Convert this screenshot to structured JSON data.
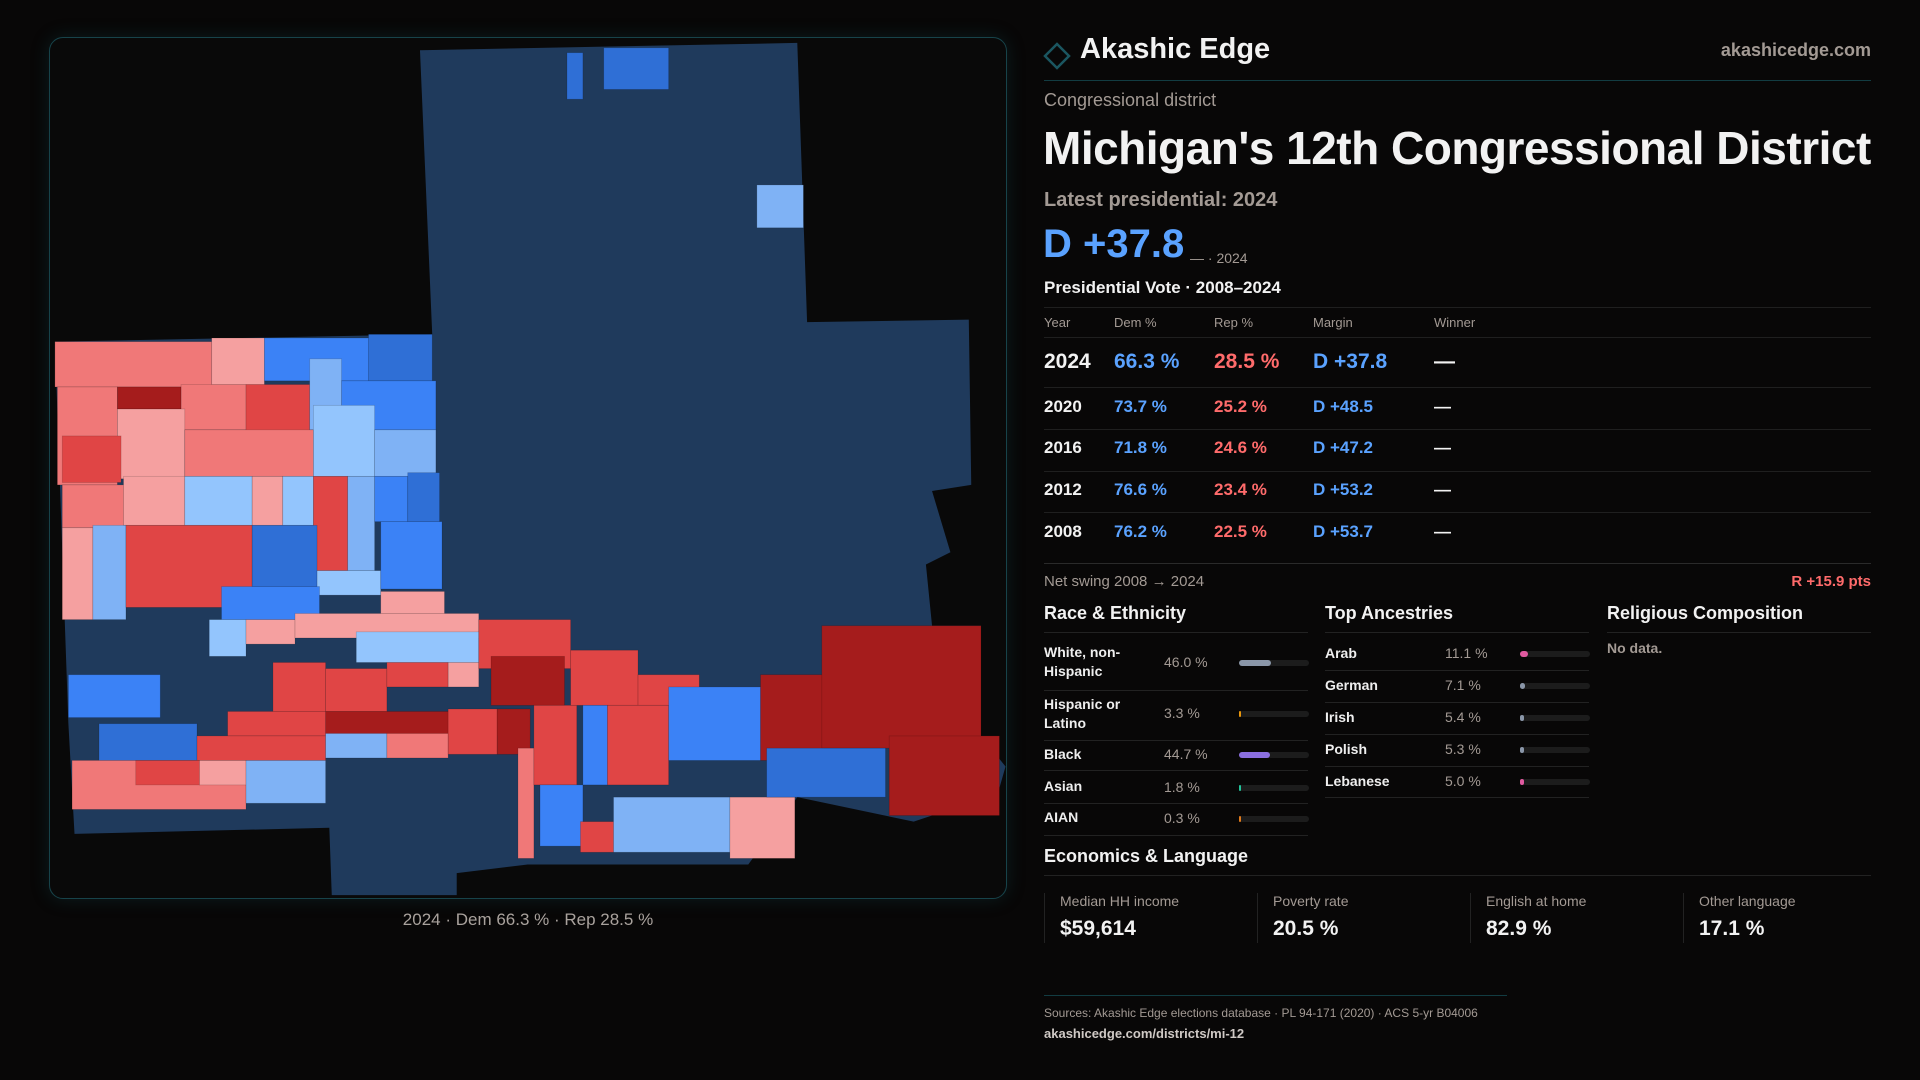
{
  "brand": {
    "name": "Akashic Edge",
    "site": "akashicedge.com",
    "accent": "#17434a"
  },
  "header": {
    "kicker": "Congressional district",
    "title": "Michigan's 12th Congressional District",
    "latest_label": "Latest presidential: 2024",
    "margin": "D +37.8",
    "margin_note": "— · 2024"
  },
  "votes": {
    "title": "Presidential Vote · 2008–2024",
    "columns": [
      "Year",
      "Dem %",
      "Rep %",
      "Margin",
      "Winner"
    ],
    "rows": [
      {
        "year": "2024",
        "dem": "66.3 %",
        "rep": "28.5 %",
        "margin": "D +37.8",
        "winner": "—"
      },
      {
        "year": "2020",
        "dem": "73.7 %",
        "rep": "25.2 %",
        "margin": "D +48.5",
        "winner": "—"
      },
      {
        "year": "2016",
        "dem": "71.8 %",
        "rep": "24.6 %",
        "margin": "D +47.2",
        "winner": "—"
      },
      {
        "year": "2012",
        "dem": "76.6 %",
        "rep": "23.4 %",
        "margin": "D +53.2",
        "winner": "—"
      },
      {
        "year": "2008",
        "dem": "76.2 %",
        "rep": "22.5 %",
        "margin": "D +53.7",
        "winner": "—"
      }
    ],
    "swing_label": "Net swing 2008 → 2024",
    "swing_value": "R +15.9 pts"
  },
  "race": {
    "title": "Race & Ethnicity",
    "items": [
      {
        "label": "White, non-Hispanic",
        "value": "46.0 %",
        "pct": 46.0,
        "color": "#8a96a8"
      },
      {
        "label": "Hispanic or Latino",
        "value": "3.3 %",
        "pct": 3.3,
        "color": "#e8960c"
      },
      {
        "label": "Black",
        "value": "44.7 %",
        "pct": 44.7,
        "color": "#8b6fe0"
      },
      {
        "label": "Asian",
        "value": "1.8 %",
        "pct": 1.8,
        "color": "#22c39a"
      },
      {
        "label": "AIAN",
        "value": "0.3 %",
        "pct": 0.3,
        "color": "#e07a1c"
      }
    ]
  },
  "ancestry": {
    "title": "Top Ancestries",
    "items": [
      {
        "label": "Arab",
        "value": "11.1 %",
        "pct": 11.1,
        "color": "#e05aa0"
      },
      {
        "label": "German",
        "value": "7.1 %",
        "pct": 7.1,
        "color": "#8a96a8"
      },
      {
        "label": "Irish",
        "value": "5.4 %",
        "pct": 5.4,
        "color": "#8a96a8"
      },
      {
        "label": "Polish",
        "value": "5.3 %",
        "pct": 5.3,
        "color": "#8a96a8"
      },
      {
        "label": "Lebanese",
        "value": "5.0 %",
        "pct": 5.0,
        "color": "#e05aa0"
      }
    ]
  },
  "religion": {
    "title": "Religious Composition",
    "empty": "No data."
  },
  "economics": {
    "title": "Economics & Language",
    "stats": [
      {
        "label": "Median HH income",
        "value": "$59,614"
      },
      {
        "label": "Poverty rate",
        "value": "20.5 %"
      },
      {
        "label": "English at home",
        "value": "82.9 %"
      },
      {
        "label": "Other language",
        "value": "17.1 %"
      }
    ]
  },
  "map": {
    "caption": "2024 · Dem 66.3 % · Rep 28.5 %",
    "dem_color": "#1f3a5c",
    "rep_color": "#a51c1c"
  },
  "footer": {
    "sources": "Sources: Akashic Edge elections database · PL 94-171 (2020) · ACS 5-yr B04006",
    "url": "akashicedge.com/districts/mi-12"
  }
}
